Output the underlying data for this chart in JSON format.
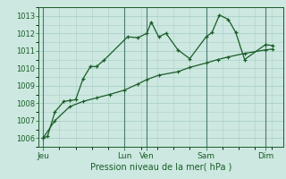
{
  "bg_color": "#cce8e0",
  "grid_color": "#aacfc8",
  "line_color": "#1a5c28",
  "xlabel": "Pression niveau de la mer( hPa )",
  "xlabel_color": "#1a5c28",
  "ylim": [
    1005.5,
    1013.5
  ],
  "yticks": [
    1006,
    1007,
    1008,
    1009,
    1010,
    1011,
    1012,
    1013
  ],
  "x_days": [
    "Jeu",
    "Lun",
    "Ven",
    "Sam",
    "Dim"
  ],
  "x_day_positions": [
    0,
    55,
    70,
    110,
    150
  ],
  "series1_x": [
    0,
    3,
    8,
    14,
    18,
    22,
    27,
    32,
    36,
    41,
    57,
    64,
    70,
    73,
    78,
    83,
    91,
    99,
    110,
    114,
    119,
    125,
    130,
    136,
    150,
    155
  ],
  "series1_y": [
    1006.0,
    1006.1,
    1007.5,
    1008.1,
    1008.15,
    1008.2,
    1009.4,
    1010.1,
    1010.1,
    1010.45,
    1011.8,
    1011.75,
    1012.0,
    1012.65,
    1011.8,
    1012.0,
    1011.05,
    1010.55,
    1011.8,
    1012.05,
    1013.05,
    1012.8,
    1012.05,
    1010.5,
    1011.35,
    1011.3
  ],
  "series2_x": [
    0,
    8,
    18,
    27,
    36,
    45,
    55,
    64,
    70,
    78,
    91,
    99,
    110,
    118,
    125,
    136,
    150,
    155
  ],
  "series2_y": [
    1006.0,
    1007.0,
    1007.8,
    1008.1,
    1008.3,
    1008.5,
    1008.75,
    1009.1,
    1009.35,
    1009.6,
    1009.8,
    1010.05,
    1010.3,
    1010.5,
    1010.65,
    1010.85,
    1011.05,
    1011.1
  ],
  "xlim": [
    -3,
    162
  ],
  "vlines": [
    0,
    55,
    70,
    110,
    150
  ],
  "vline_color": "#4a7a70"
}
